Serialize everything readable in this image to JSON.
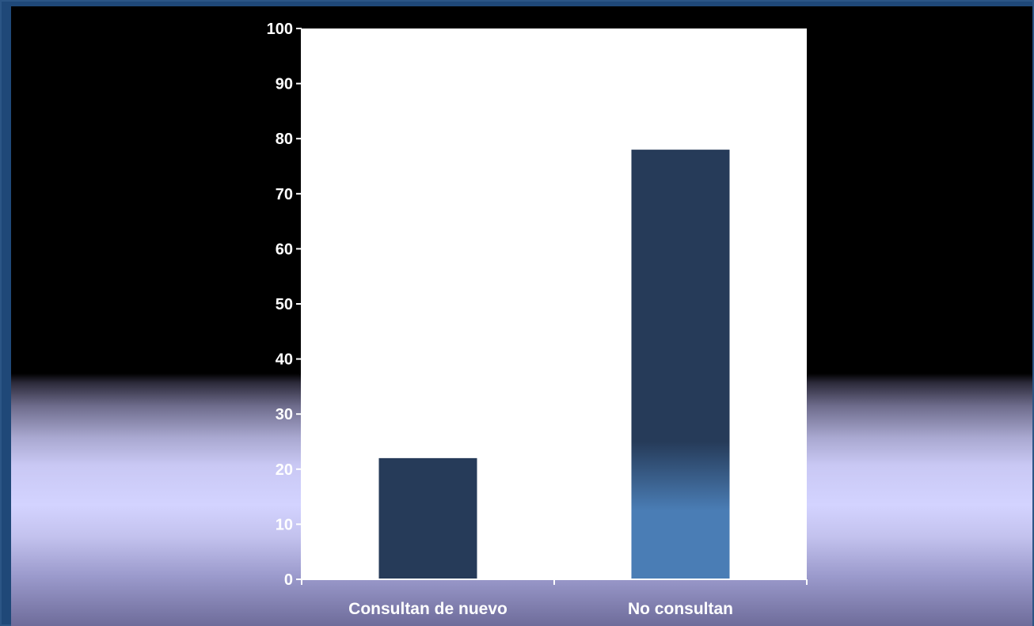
{
  "chart_data": {
    "type": "bar",
    "title": "",
    "xlabel": "",
    "ylabel": "",
    "categories": [
      "Consultan de nuevo",
      "No consultan"
    ],
    "values": [
      22,
      78
    ],
    "ylim": [
      0,
      100
    ],
    "yticks": [
      "0",
      "10",
      "20",
      "30",
      "40",
      "50",
      "60",
      "70",
      "80",
      "90",
      "100"
    ],
    "grid": false,
    "legend": "none",
    "colors": {
      "plot_area": "#ffffff",
      "bar_dark": "#263b59",
      "bar_light": "#4a7db5",
      "axis": "#ffffff",
      "text": "#ffffff"
    }
  }
}
